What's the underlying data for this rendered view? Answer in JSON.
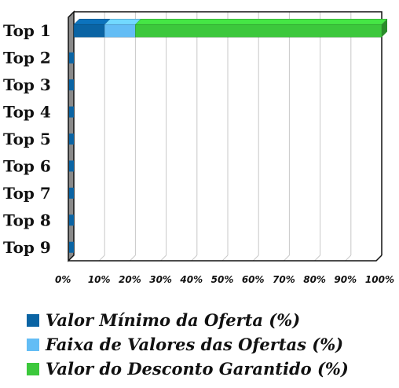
{
  "chart_data": {
    "type": "bar",
    "orientation": "horizontal",
    "stacked": true,
    "categories": [
      "Top 1",
      "Top 2",
      "Top 3",
      "Top 4",
      "Top 5",
      "Top 6",
      "Top 7",
      "Top 8",
      "Top 9"
    ],
    "series": [
      {
        "name": "Valor Mínimo da Oferta (%)",
        "color": "#0a64a4",
        "values": [
          10,
          0,
          0,
          0,
          0,
          0,
          0,
          0,
          0
        ]
      },
      {
        "name": "Faixa de Valores das Ofertas (%)",
        "color": "#63bdf5",
        "values": [
          10,
          0,
          0,
          0,
          0,
          0,
          0,
          0,
          0
        ]
      },
      {
        "name": "Valor do Desconto Garantido (%)",
        "color": "#3cc83c",
        "values": [
          80,
          0,
          0,
          0,
          0,
          0,
          0,
          0,
          0
        ]
      }
    ],
    "x_ticks": [
      "0%",
      "10%",
      "20%",
      "30%",
      "40%",
      "50%",
      "60%",
      "70%",
      "80%",
      "90%",
      "100%"
    ],
    "xlim": [
      0,
      100
    ],
    "grid": true,
    "legend_position": "bottom",
    "title": "",
    "xlabel": "",
    "ylabel": ""
  }
}
